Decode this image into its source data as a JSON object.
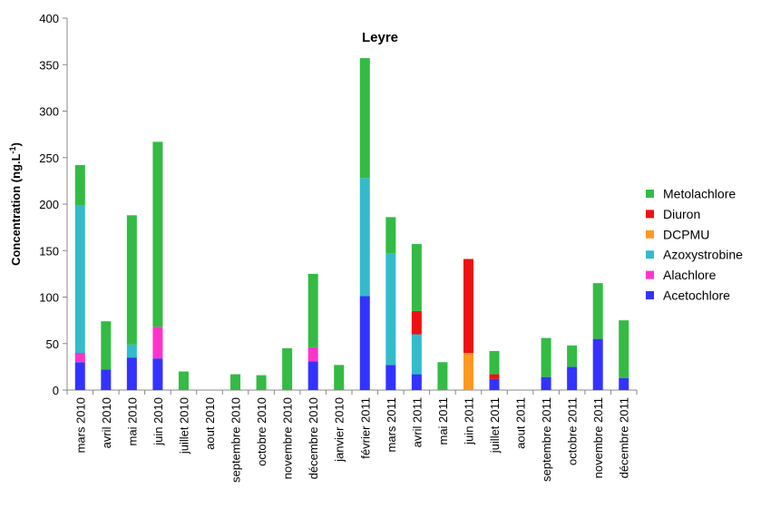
{
  "chart_data": {
    "type": "bar",
    "stacked": true,
    "title": "Leyre",
    "ylabel": "Concentration (ng.L",
    "ylabel_superscript": "-1",
    "ylabel_suffix": ")",
    "ylim": [
      0,
      400
    ],
    "yticks": [
      0,
      50,
      100,
      150,
      200,
      250,
      300,
      350,
      400
    ],
    "legend_position": "right",
    "grid": false,
    "categories": [
      "mars 2010",
      "avril 2010",
      "mai 2010",
      "juin 2010",
      "juillet 2010",
      "aout 2010",
      "septembre 2010",
      "octobre 2010",
      "novembre 2010",
      "décembre 2010",
      "janvier 2010",
      "février 2011",
      "mars 2011",
      "avril 2011",
      "mai 2011",
      "juin 2011",
      "juillet 2011",
      "aout 2011",
      "septembre 2011",
      "octobre 2011",
      "novembre 2011",
      "décembre 2011"
    ],
    "series": [
      {
        "name": "Acetochlore",
        "color": "#3333ff",
        "values": [
          30,
          22,
          35,
          34,
          0,
          0,
          0,
          0,
          0,
          31,
          0,
          101,
          27,
          17,
          0,
          0,
          12,
          0,
          14,
          25,
          55,
          13
        ]
      },
      {
        "name": "Alachlore",
        "color": "#ff33cc",
        "values": [
          10,
          0,
          0,
          34,
          0,
          0,
          0,
          0,
          0,
          15,
          0,
          0,
          0,
          0,
          0,
          0,
          0,
          0,
          0,
          0,
          0,
          0
        ]
      },
      {
        "name": "Azoxystrobine",
        "color": "#33bbcc",
        "values": [
          159,
          0,
          14,
          0,
          0,
          0,
          0,
          0,
          0,
          0,
          0,
          127,
          120,
          43,
          0,
          0,
          0,
          0,
          0,
          0,
          0,
          0
        ]
      },
      {
        "name": "DCPMU",
        "color": "#ff9922",
        "values": [
          0,
          0,
          0,
          0,
          0,
          0,
          0,
          0,
          0,
          0,
          0,
          0,
          0,
          0,
          0,
          40,
          0,
          0,
          0,
          0,
          0,
          0
        ]
      },
      {
        "name": "Diuron",
        "color": "#ee1111",
        "values": [
          0,
          0,
          0,
          0,
          0,
          0,
          0,
          0,
          0,
          0,
          0,
          0,
          0,
          25,
          0,
          101,
          5,
          0,
          0,
          0,
          0,
          0
        ]
      },
      {
        "name": "Metolachlore",
        "color": "#33bb44",
        "values": [
          43,
          52,
          139,
          199,
          20,
          0,
          17,
          16,
          45,
          79,
          27,
          129,
          39,
          72,
          30,
          0,
          25,
          0,
          42,
          23,
          60,
          62
        ]
      }
    ]
  }
}
